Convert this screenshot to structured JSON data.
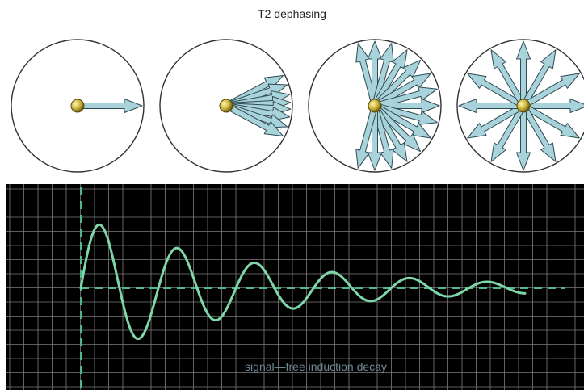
{
  "title": "T2 dephasing",
  "scope_caption": "signal—free induction decay",
  "colors": {
    "arrow_fill": "#a9d3db",
    "arrow_stroke": "#2e4a52",
    "nucleus": "#c9b23a",
    "scope_bg": "#000000",
    "grid": "#7d7d7d",
    "trace": "#7fd6a8",
    "baseline": "#4fb98a",
    "caption": "#6e8a96"
  },
  "panels": [
    {
      "name": "in-phase",
      "arrow_angles_deg": [
        0
      ]
    },
    {
      "name": "slight-dephase",
      "arrow_angles_deg": [
        -28,
        -19,
        -10,
        -3,
        3,
        10,
        19,
        28
      ]
    },
    {
      "name": "half-dephase",
      "arrow_angles_deg": [
        -105,
        -90,
        -75,
        -60,
        -45,
        -30,
        -15,
        0,
        15,
        30,
        45,
        60,
        75,
        90,
        105
      ]
    },
    {
      "name": "full-dephase",
      "arrow_angles_deg": [
        0,
        30,
        60,
        90,
        120,
        150,
        180,
        210,
        240,
        270,
        300,
        330
      ]
    }
  ],
  "icon": "nucleus-sphere-icon"
}
